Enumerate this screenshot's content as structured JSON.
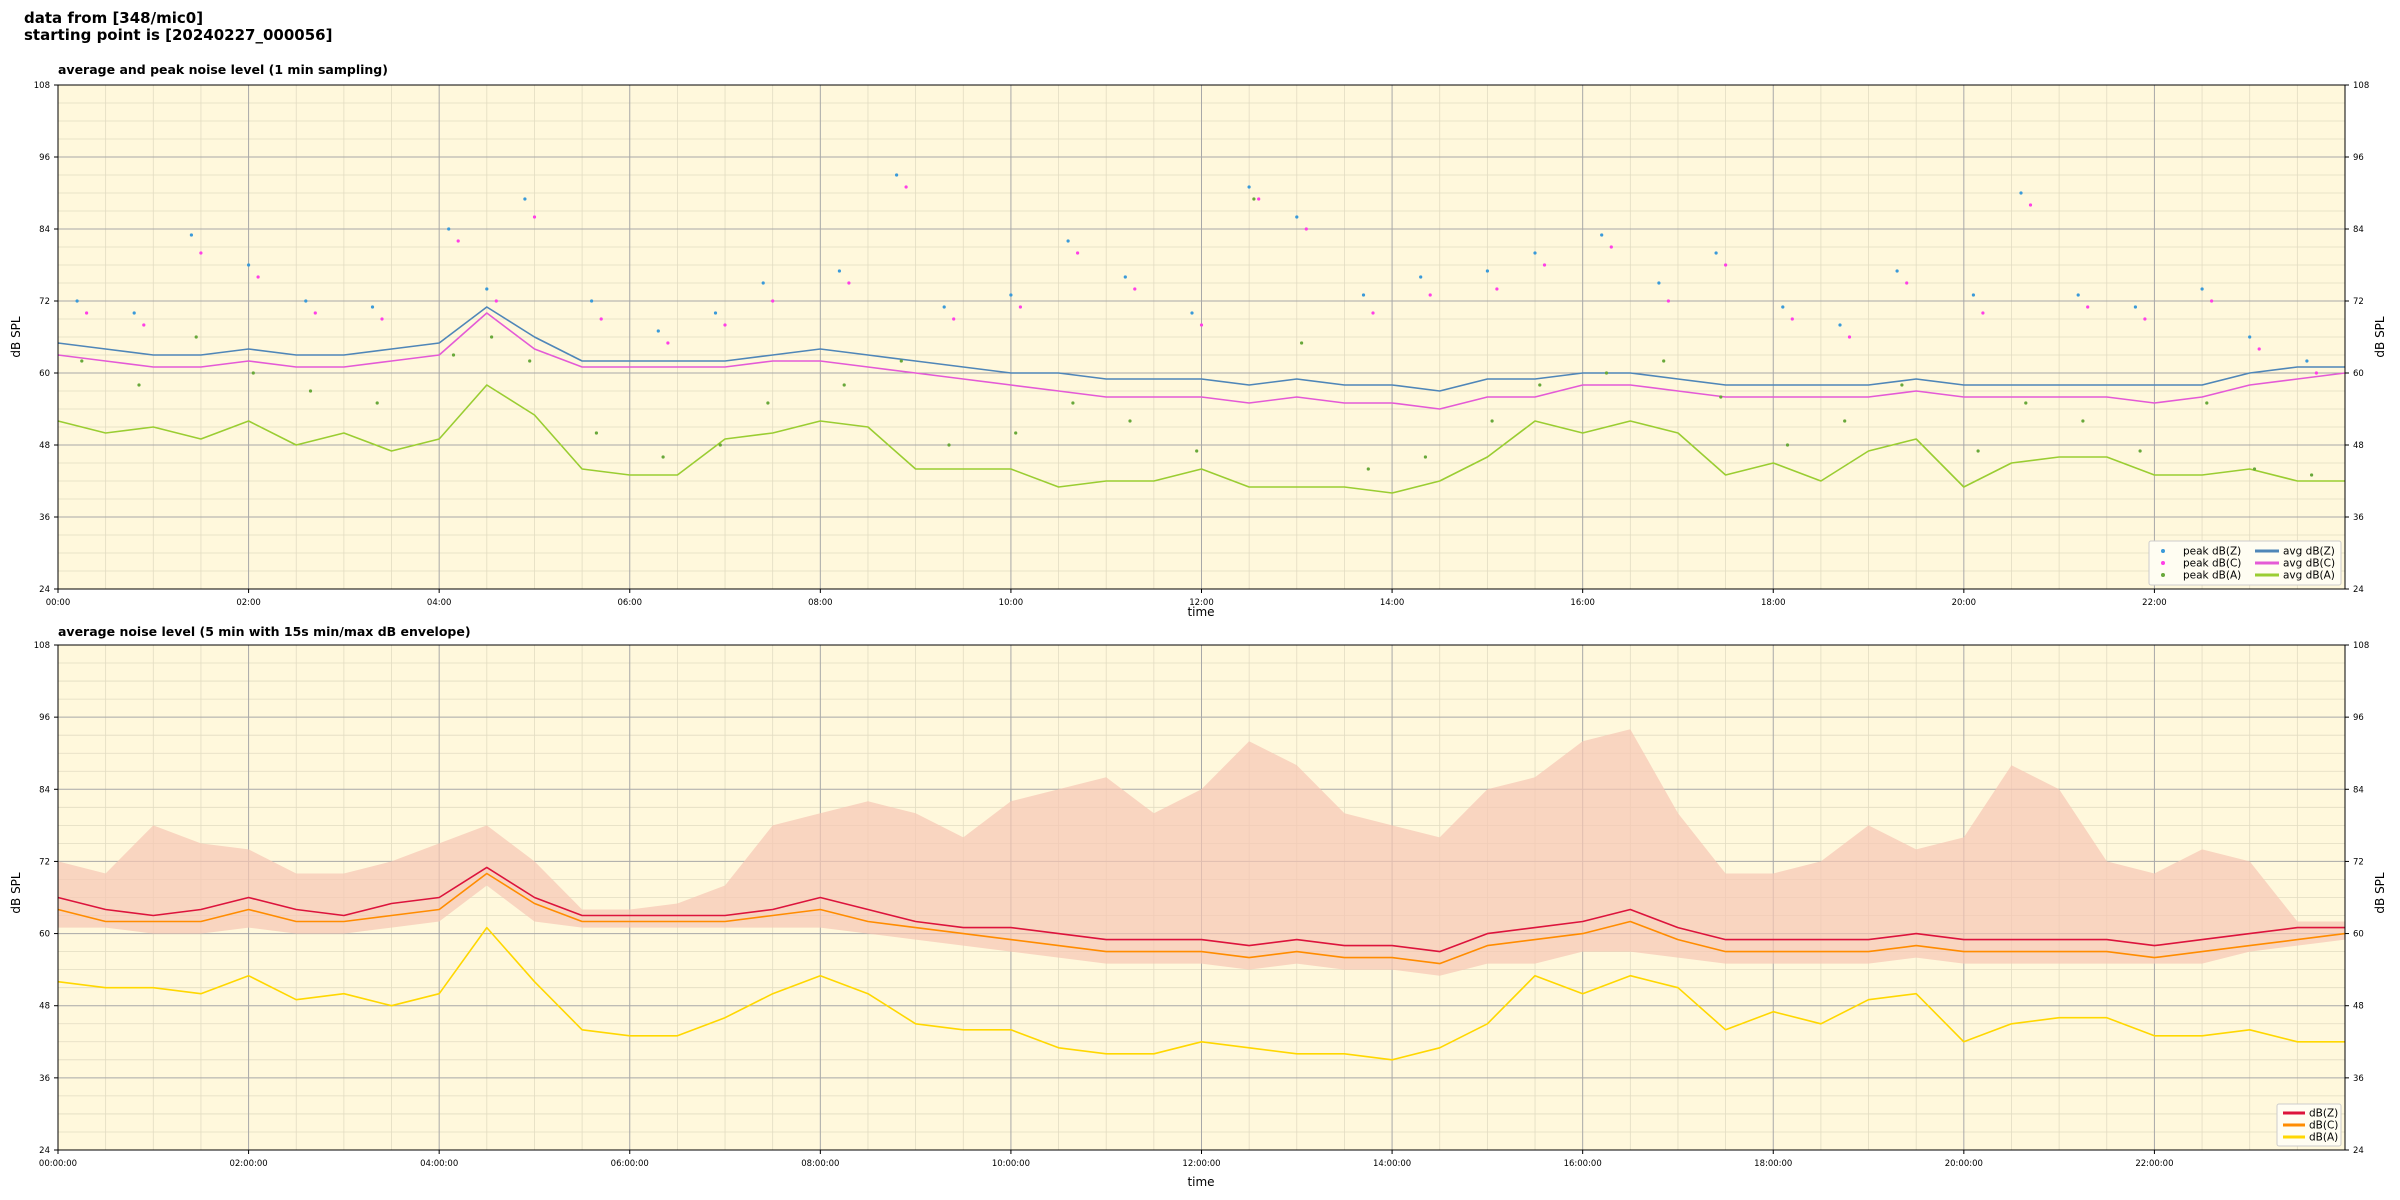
{
  "figure": {
    "line1": "data from [348/mic0]",
    "line2": "starting point is [20240227_000056]"
  },
  "colors": {
    "plot_bg": "#fff8dc",
    "grid_major": "#a8a8a8",
    "grid_minor": "#e2dcc2",
    "peak_z": "#3a9ad9",
    "peak_c": "#ff3fe6",
    "peak_a": "#68a83a",
    "avg_z": "#4f86b8",
    "avg_c": "#e45ad6",
    "avg_a": "#9acd32",
    "db_z": "#dc143c",
    "db_c": "#ff8c00",
    "db_a": "#ffd700",
    "envelope": "#f7c6b4"
  },
  "chart_data": [
    {
      "type": "line",
      "title": "average and peak noise level (1 min sampling)",
      "xlabel": "time",
      "ylabel": "dB SPL",
      "xlim_hours": [
        0,
        24
      ],
      "ylim": [
        24,
        108
      ],
      "yticks": [
        "24",
        "36",
        "48",
        "60",
        "72",
        "84",
        "96",
        "108"
      ],
      "xticks": [
        "00:00",
        "02:00",
        "04:00",
        "06:00",
        "08:00",
        "10:00",
        "12:00",
        "14:00",
        "16:00",
        "18:00",
        "20:00",
        "22:00"
      ],
      "grid": true,
      "legend_position": "lower-right",
      "legend": [
        "peak dB(Z)",
        "peak dB(C)",
        "peak dB(A)",
        "avg dB(Z)",
        "avg dB(C)",
        "avg dB(A)"
      ],
      "series": [
        {
          "name": "avg dB(Z)",
          "style": "line",
          "color": "#4f86b8",
          "x": [
            0,
            0.5,
            1.0,
            1.5,
            2.0,
            2.5,
            3.0,
            3.5,
            4.0,
            4.5,
            5.0,
            5.5,
            6.0,
            6.5,
            7.0,
            7.5,
            8.0,
            8.5,
            9.0,
            9.5,
            10.0,
            10.5,
            11.0,
            11.5,
            12.0,
            12.5,
            13.0,
            13.5,
            14.0,
            14.5,
            15.0,
            15.5,
            16.0,
            16.5,
            17.0,
            17.5,
            18.0,
            18.5,
            19.0,
            19.5,
            20.0,
            20.5,
            21.0,
            21.5,
            22.0,
            22.5,
            23.0,
            23.5,
            24.0
          ],
          "y": [
            65,
            64,
            63,
            63,
            64,
            63,
            63,
            64,
            65,
            71,
            66,
            62,
            62,
            62,
            62,
            63,
            64,
            63,
            62,
            61,
            60,
            60,
            59,
            59,
            59,
            58,
            59,
            58,
            58,
            57,
            59,
            59,
            60,
            60,
            59,
            58,
            58,
            58,
            58,
            59,
            58,
            58,
            58,
            58,
            58,
            58,
            60,
            61,
            61
          ]
        },
        {
          "name": "avg dB(C)",
          "style": "line",
          "color": "#e45ad6",
          "x": [
            0,
            0.5,
            1.0,
            1.5,
            2.0,
            2.5,
            3.0,
            3.5,
            4.0,
            4.5,
            5.0,
            5.5,
            6.0,
            6.5,
            7.0,
            7.5,
            8.0,
            8.5,
            9.0,
            9.5,
            10.0,
            10.5,
            11.0,
            11.5,
            12.0,
            12.5,
            13.0,
            13.5,
            14.0,
            14.5,
            15.0,
            15.5,
            16.0,
            16.5,
            17.0,
            17.5,
            18.0,
            18.5,
            19.0,
            19.5,
            20.0,
            20.5,
            21.0,
            21.5,
            22.0,
            22.5,
            23.0,
            23.5,
            24.0
          ],
          "y": [
            63,
            62,
            61,
            61,
            62,
            61,
            61,
            62,
            63,
            70,
            64,
            61,
            61,
            61,
            61,
            62,
            62,
            61,
            60,
            59,
            58,
            57,
            56,
            56,
            56,
            55,
            56,
            55,
            55,
            54,
            56,
            56,
            58,
            58,
            57,
            56,
            56,
            56,
            56,
            57,
            56,
            56,
            56,
            56,
            55,
            56,
            58,
            59,
            60
          ]
        },
        {
          "name": "avg dB(A)",
          "style": "line",
          "color": "#9acd32",
          "x": [
            0,
            0.5,
            1.0,
            1.5,
            2.0,
            2.5,
            3.0,
            3.5,
            4.0,
            4.5,
            5.0,
            5.5,
            6.0,
            6.5,
            7.0,
            7.5,
            8.0,
            8.5,
            9.0,
            9.5,
            10.0,
            10.5,
            11.0,
            11.5,
            12.0,
            12.5,
            13.0,
            13.5,
            14.0,
            14.5,
            15.0,
            15.5,
            16.0,
            16.5,
            17.0,
            17.5,
            18.0,
            18.5,
            19.0,
            19.5,
            20.0,
            20.5,
            21.0,
            21.5,
            22.0,
            22.5,
            23.0,
            23.5,
            24.0
          ],
          "y": [
            52,
            50,
            51,
            49,
            52,
            48,
            50,
            47,
            49,
            58,
            53,
            44,
            43,
            43,
            49,
            50,
            52,
            51,
            44,
            44,
            44,
            41,
            42,
            42,
            44,
            41,
            41,
            41,
            40,
            42,
            46,
            52,
            50,
            52,
            50,
            43,
            45,
            42,
            47,
            49,
            41,
            45,
            46,
            46,
            43,
            43,
            44,
            42,
            42
          ]
        },
        {
          "name": "peak dB(Z)",
          "style": "points",
          "color": "#3a9ad9",
          "x": [
            0.2,
            0.8,
            1.4,
            2.0,
            2.6,
            3.3,
            4.1,
            4.5,
            4.9,
            5.6,
            6.3,
            6.9,
            7.4,
            8.2,
            8.8,
            9.3,
            10.0,
            10.6,
            11.2,
            11.9,
            12.5,
            13.0,
            13.7,
            14.3,
            15.0,
            15.5,
            16.2,
            16.8,
            17.4,
            18.1,
            18.7,
            19.3,
            20.1,
            20.6,
            21.2,
            21.8,
            22.5,
            23.0,
            23.6
          ],
          "y": [
            72,
            70,
            83,
            78,
            72,
            71,
            84,
            74,
            89,
            72,
            67,
            70,
            75,
            77,
            93,
            71,
            73,
            82,
            76,
            70,
            91,
            86,
            73,
            76,
            77,
            80,
            83,
            75,
            80,
            71,
            68,
            77,
            73,
            90,
            73,
            71,
            74,
            66,
            62
          ]
        },
        {
          "name": "peak dB(C)",
          "style": "points",
          "color": "#ff3fe6",
          "x": [
            0.3,
            0.9,
            1.5,
            2.1,
            2.7,
            3.4,
            4.2,
            4.6,
            5.0,
            5.7,
            6.4,
            7.0,
            7.5,
            8.3,
            8.9,
            9.4,
            10.1,
            10.7,
            11.3,
            12.0,
            12.6,
            13.1,
            13.8,
            14.4,
            15.1,
            15.6,
            16.3,
            16.9,
            17.5,
            18.2,
            18.8,
            19.4,
            20.2,
            20.7,
            21.3,
            21.9,
            22.6,
            23.1,
            23.7
          ],
          "y": [
            70,
            68,
            80,
            76,
            70,
            69,
            82,
            72,
            86,
            69,
            65,
            68,
            72,
            75,
            91,
            69,
            71,
            80,
            74,
            68,
            89,
            84,
            70,
            73,
            74,
            78,
            81,
            72,
            78,
            69,
            66,
            75,
            70,
            88,
            71,
            69,
            72,
            64,
            60
          ]
        },
        {
          "name": "peak dB(A)",
          "style": "points",
          "color": "#68a83a",
          "x": [
            0.25,
            0.85,
            1.45,
            2.05,
            2.65,
            3.35,
            4.15,
            4.55,
            4.95,
            5.65,
            6.35,
            6.95,
            7.45,
            8.25,
            8.85,
            9.35,
            10.05,
            10.65,
            11.25,
            11.95,
            12.55,
            13.05,
            13.75,
            14.35,
            15.05,
            15.55,
            16.25,
            16.85,
            17.45,
            18.15,
            18.75,
            19.35,
            20.15,
            20.65,
            21.25,
            21.85,
            22.55,
            23.05,
            23.65
          ],
          "y": [
            62,
            58,
            66,
            60,
            57,
            55,
            63,
            66,
            62,
            50,
            46,
            48,
            55,
            58,
            62,
            48,
            50,
            55,
            52,
            47,
            89,
            65,
            44,
            46,
            52,
            58,
            60,
            62,
            56,
            48,
            52,
            58,
            47,
            55,
            52,
            47,
            55,
            44,
            43
          ]
        }
      ]
    },
    {
      "type": "line",
      "title": "average noise level (5 min with 15s min/max dB envelope)",
      "xlabel": "time",
      "ylabel": "dB SPL",
      "xlim_hours": [
        0,
        24
      ],
      "ylim": [
        24,
        108
      ],
      "yticks": [
        "24",
        "36",
        "48",
        "60",
        "72",
        "84",
        "96",
        "108"
      ],
      "xticks": [
        "00:00:00",
        "02:00:00",
        "04:00:00",
        "06:00:00",
        "08:00:00",
        "10:00:00",
        "12:00:00",
        "14:00:00",
        "16:00:00",
        "18:00:00",
        "20:00:00",
        "22:00:00"
      ],
      "grid": true,
      "legend_position": "lower-right",
      "legend": [
        "dB(Z)",
        "dB(C)",
        "dB(A)"
      ],
      "envelope": {
        "color": "#f7c6b4",
        "x": [
          0,
          0.5,
          1.0,
          1.5,
          2.0,
          2.5,
          3.0,
          3.5,
          4.0,
          4.5,
          5.0,
          5.5,
          6.0,
          6.5,
          7.0,
          7.5,
          8.0,
          8.5,
          9.0,
          9.5,
          10.0,
          10.5,
          11.0,
          11.5,
          12.0,
          12.5,
          13.0,
          13.5,
          14.0,
          14.5,
          15.0,
          15.5,
          16.0,
          16.5,
          17.0,
          17.5,
          18.0,
          18.5,
          19.0,
          19.5,
          20.0,
          20.5,
          21.0,
          21.5,
          22.0,
          22.5,
          23.0,
          23.5,
          24.0
        ],
        "min": [
          61,
          61,
          60,
          60,
          61,
          60,
          60,
          61,
          62,
          68,
          62,
          61,
          61,
          61,
          61,
          61,
          61,
          60,
          59,
          58,
          57,
          56,
          55,
          55,
          55,
          54,
          55,
          54,
          54,
          53,
          55,
          55,
          57,
          57,
          56,
          55,
          55,
          55,
          55,
          56,
          55,
          55,
          55,
          55,
          55,
          55,
          57,
          58,
          59
        ],
        "max": [
          72,
          70,
          78,
          75,
          74,
          70,
          70,
          72,
          75,
          78,
          72,
          64,
          64,
          65,
          68,
          78,
          80,
          82,
          80,
          76,
          82,
          84,
          86,
          80,
          84,
          92,
          88,
          80,
          78,
          76,
          84,
          86,
          92,
          94,
          80,
          70,
          70,
          72,
          78,
          74,
          76,
          88,
          84,
          72,
          70,
          74,
          72,
          62,
          62
        ]
      },
      "series": [
        {
          "name": "dB(Z)",
          "style": "line",
          "color": "#dc143c",
          "x": [
            0,
            0.5,
            1.0,
            1.5,
            2.0,
            2.5,
            3.0,
            3.5,
            4.0,
            4.5,
            5.0,
            5.5,
            6.0,
            6.5,
            7.0,
            7.5,
            8.0,
            8.5,
            9.0,
            9.5,
            10.0,
            10.5,
            11.0,
            11.5,
            12.0,
            12.5,
            13.0,
            13.5,
            14.0,
            14.5,
            15.0,
            15.5,
            16.0,
            16.5,
            17.0,
            17.5,
            18.0,
            18.5,
            19.0,
            19.5,
            20.0,
            20.5,
            21.0,
            21.5,
            22.0,
            22.5,
            23.0,
            23.5,
            24.0
          ],
          "y": [
            66,
            64,
            63,
            64,
            66,
            64,
            63,
            65,
            66,
            71,
            66,
            63,
            63,
            63,
            63,
            64,
            66,
            64,
            62,
            61,
            61,
            60,
            59,
            59,
            59,
            58,
            59,
            58,
            58,
            57,
            60,
            61,
            62,
            64,
            61,
            59,
            59,
            59,
            59,
            60,
            59,
            59,
            59,
            59,
            58,
            59,
            60,
            61,
            61
          ]
        },
        {
          "name": "dB(C)",
          "style": "line",
          "color": "#ff8c00",
          "x": [
            0,
            0.5,
            1.0,
            1.5,
            2.0,
            2.5,
            3.0,
            3.5,
            4.0,
            4.5,
            5.0,
            5.5,
            6.0,
            6.5,
            7.0,
            7.5,
            8.0,
            8.5,
            9.0,
            9.5,
            10.0,
            10.5,
            11.0,
            11.5,
            12.0,
            12.5,
            13.0,
            13.5,
            14.0,
            14.5,
            15.0,
            15.5,
            16.0,
            16.5,
            17.0,
            17.5,
            18.0,
            18.5,
            19.0,
            19.5,
            20.0,
            20.5,
            21.0,
            21.5,
            22.0,
            22.5,
            23.0,
            23.5,
            24.0
          ],
          "y": [
            64,
            62,
            62,
            62,
            64,
            62,
            62,
            63,
            64,
            70,
            65,
            62,
            62,
            62,
            62,
            63,
            64,
            62,
            61,
            60,
            59,
            58,
            57,
            57,
            57,
            56,
            57,
            56,
            56,
            55,
            58,
            59,
            60,
            62,
            59,
            57,
            57,
            57,
            57,
            58,
            57,
            57,
            57,
            57,
            56,
            57,
            58,
            59,
            60
          ]
        },
        {
          "name": "dB(A)",
          "style": "line",
          "color": "#ffd700",
          "x": [
            0,
            0.5,
            1.0,
            1.5,
            2.0,
            2.5,
            3.0,
            3.5,
            4.0,
            4.5,
            5.0,
            5.5,
            6.0,
            6.5,
            7.0,
            7.5,
            8.0,
            8.5,
            9.0,
            9.5,
            10.0,
            10.5,
            11.0,
            11.5,
            12.0,
            12.5,
            13.0,
            13.5,
            14.0,
            14.5,
            15.0,
            15.5,
            16.0,
            16.5,
            17.0,
            17.5,
            18.0,
            18.5,
            19.0,
            19.5,
            20.0,
            20.5,
            21.0,
            21.5,
            22.0,
            22.5,
            23.0,
            23.5,
            24.0
          ],
          "y": [
            52,
            51,
            51,
            50,
            53,
            49,
            50,
            48,
            50,
            61,
            52,
            44,
            43,
            43,
            46,
            50,
            53,
            50,
            45,
            44,
            44,
            41,
            40,
            40,
            42,
            41,
            40,
            40,
            39,
            41,
            45,
            53,
            50,
            53,
            51,
            44,
            47,
            45,
            49,
            50,
            42,
            45,
            46,
            46,
            43,
            43,
            44,
            42,
            42
          ]
        }
      ]
    }
  ]
}
